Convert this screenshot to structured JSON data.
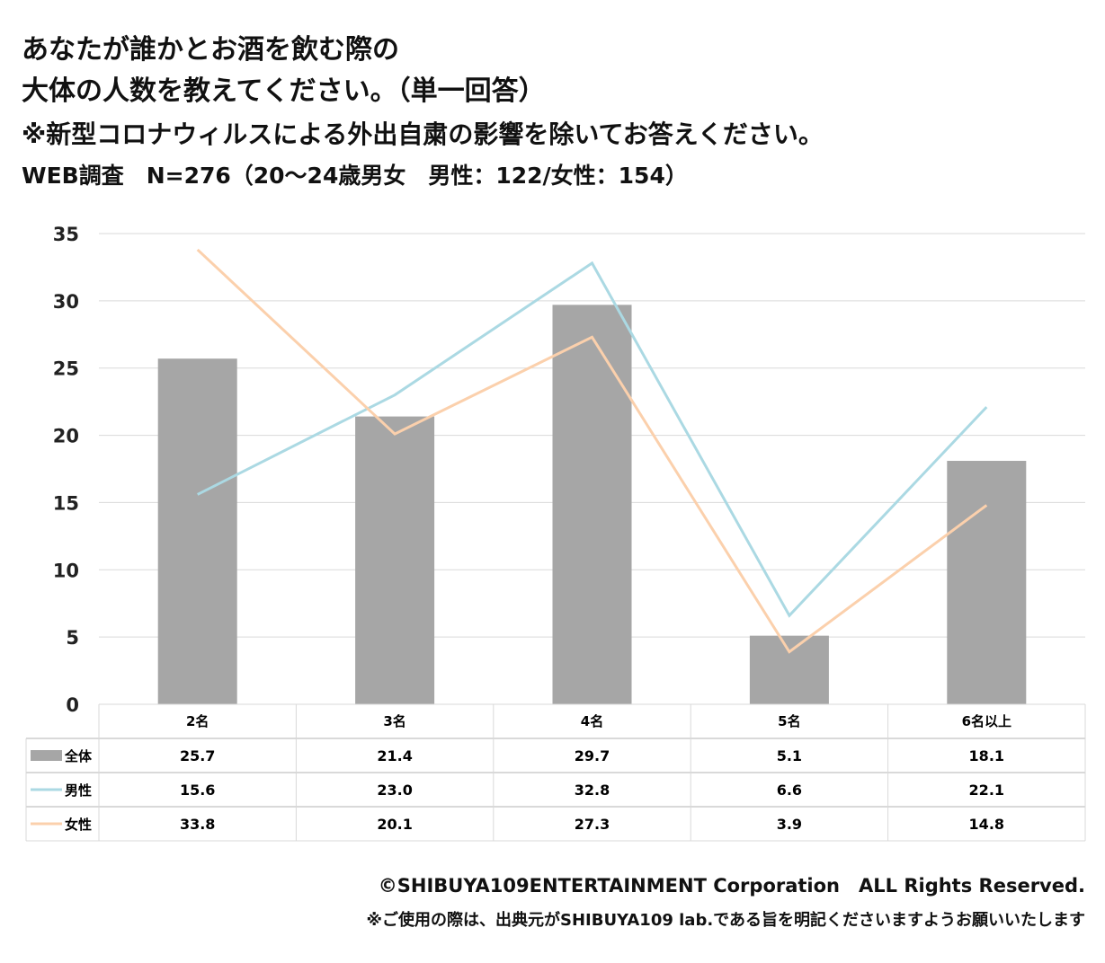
{
  "title_line1": "あなたが誰かとお酒を飲む際の",
  "title_line2": "大体の人数を教えてください。（単一回答）",
  "note": "※新型コロナウィルスによる外出自粛の影響を除いてお答えください。",
  "survey": "WEB調査　N=276（20～24歳男女　男性：122/女性：154）",
  "footer_copyright": "©SHIBUYA109ENTERTAINMENT Corporation　ALL Rights Reserved.",
  "footer_note": "※ご使用の際は、出典元がSHIBUYA109 lab.である旨を明記くださいますようお願いいたします",
  "chart_data": {
    "type": "bar",
    "categories": [
      "2名",
      "3名",
      "4名",
      "5名",
      "6名以上"
    ],
    "ylim": [
      0,
      35
    ],
    "yticks": [
      "0",
      "5",
      "10",
      "15",
      "20",
      "25",
      "30",
      "35"
    ],
    "grid": true,
    "series": [
      {
        "name": "全体",
        "kind": "bar",
        "color": "#a6a6a6",
        "values": [
          25.7,
          21.4,
          29.7,
          5.1,
          18.1
        ],
        "labels": [
          "25.7",
          "21.4",
          "29.7",
          "5.1",
          "18.1"
        ]
      },
      {
        "name": "男性",
        "kind": "line",
        "color": "#abd9e3",
        "values": [
          15.6,
          23.0,
          32.8,
          6.6,
          22.1
        ],
        "labels": [
          "15.6",
          "23.0",
          "32.8",
          "6.6",
          "22.1"
        ]
      },
      {
        "name": "女性",
        "kind": "line",
        "color": "#fbd0ac",
        "values": [
          33.8,
          20.1,
          27.3,
          3.9,
          14.8
        ],
        "labels": [
          "33.8",
          "20.1",
          "27.3",
          "3.9",
          "14.8"
        ]
      }
    ],
    "legend": "data-table-below"
  }
}
